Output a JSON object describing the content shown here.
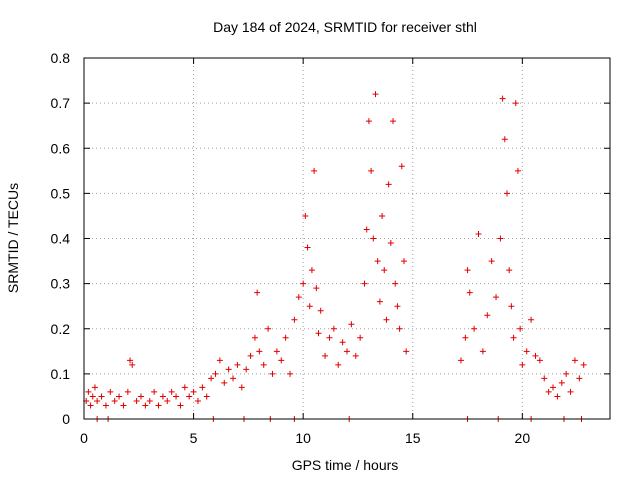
{
  "chart_data": {
    "type": "scatter",
    "title": "Day 184 of 2024, SRMTID for receiver sthl",
    "xlabel": "GPS time / hours",
    "ylabel": "SRMTID / TECUs",
    "xlim": [
      0,
      24
    ],
    "ylim": [
      0,
      0.8
    ],
    "grid": true,
    "marker": "+",
    "marker_color": "#e00000",
    "x_ticks": [
      0,
      5,
      10,
      15,
      20
    ],
    "x_tick_labels": [
      "0",
      "5",
      "10",
      "15",
      "20"
    ],
    "y_ticks": [
      0,
      0.1,
      0.2,
      0.3,
      0.4,
      0.5,
      0.6,
      0.7,
      0.8
    ],
    "y_tick_labels": [
      "0",
      "0.1",
      "0.2",
      "0.3",
      "0.4",
      "0.5",
      "0.6",
      "0.7",
      "0.8"
    ],
    "data_gaps_hours": [
      [
        14.8,
        17.2
      ]
    ],
    "series": [
      {
        "name": "SRMTID",
        "points": [
          [
            0.1,
            0.04
          ],
          [
            0.2,
            0.06
          ],
          [
            0.3,
            0.03
          ],
          [
            0.4,
            0.05
          ],
          [
            0.5,
            0.07
          ],
          [
            0.6,
            0.04
          ],
          [
            0.8,
            0.05
          ],
          [
            1.0,
            0.03
          ],
          [
            1.2,
            0.06
          ],
          [
            1.4,
            0.04
          ],
          [
            1.6,
            0.05
          ],
          [
            1.8,
            0.03
          ],
          [
            2.0,
            0.06
          ],
          [
            2.1,
            0.13
          ],
          [
            2.2,
            0.12
          ],
          [
            2.4,
            0.04
          ],
          [
            2.6,
            0.05
          ],
          [
            2.8,
            0.03
          ],
          [
            3.0,
            0.04
          ],
          [
            3.2,
            0.06
          ],
          [
            3.4,
            0.03
          ],
          [
            3.6,
            0.05
          ],
          [
            3.8,
            0.04
          ],
          [
            4.0,
            0.06
          ],
          [
            4.2,
            0.05
          ],
          [
            4.4,
            0.03
          ],
          [
            4.6,
            0.07
          ],
          [
            4.8,
            0.05
          ],
          [
            5.0,
            0.06
          ],
          [
            5.2,
            0.04
          ],
          [
            5.4,
            0.07
          ],
          [
            5.6,
            0.05
          ],
          [
            5.8,
            0.09
          ],
          [
            6.0,
            0.1
          ],
          [
            6.2,
            0.13
          ],
          [
            6.4,
            0.08
          ],
          [
            6.6,
            0.11
          ],
          [
            6.8,
            0.09
          ],
          [
            7.0,
            0.12
          ],
          [
            7.2,
            0.07
          ],
          [
            7.4,
            0.11
          ],
          [
            7.6,
            0.14
          ],
          [
            7.8,
            0.18
          ],
          [
            7.9,
            0.28
          ],
          [
            8.0,
            0.15
          ],
          [
            8.2,
            0.12
          ],
          [
            8.4,
            0.2
          ],
          [
            8.6,
            0.1
          ],
          [
            8.8,
            0.15
          ],
          [
            9.0,
            0.13
          ],
          [
            9.2,
            0.18
          ],
          [
            9.4,
            0.1
          ],
          [
            9.6,
            0.22
          ],
          [
            9.8,
            0.27
          ],
          [
            10.0,
            0.3
          ],
          [
            10.1,
            0.45
          ],
          [
            10.2,
            0.38
          ],
          [
            10.3,
            0.25
          ],
          [
            10.4,
            0.33
          ],
          [
            10.5,
            0.55
          ],
          [
            10.6,
            0.29
          ],
          [
            10.7,
            0.19
          ],
          [
            10.8,
            0.24
          ],
          [
            11.0,
            0.14
          ],
          [
            11.2,
            0.18
          ],
          [
            11.4,
            0.2
          ],
          [
            11.6,
            0.12
          ],
          [
            11.8,
            0.17
          ],
          [
            12.0,
            0.15
          ],
          [
            12.2,
            0.21
          ],
          [
            12.4,
            0.14
          ],
          [
            12.6,
            0.18
          ],
          [
            12.8,
            0.3
          ],
          [
            12.9,
            0.42
          ],
          [
            13.0,
            0.66
          ],
          [
            13.1,
            0.55
          ],
          [
            13.2,
            0.4
          ],
          [
            13.3,
            0.72
          ],
          [
            13.4,
            0.35
          ],
          [
            13.5,
            0.26
          ],
          [
            13.6,
            0.45
          ],
          [
            13.7,
            0.33
          ],
          [
            13.8,
            0.22
          ],
          [
            13.9,
            0.52
          ],
          [
            14.0,
            0.39
          ],
          [
            14.1,
            0.66
          ],
          [
            14.2,
            0.3
          ],
          [
            14.3,
            0.25
          ],
          [
            14.4,
            0.2
          ],
          [
            14.5,
            0.56
          ],
          [
            14.6,
            0.35
          ],
          [
            14.7,
            0.15
          ],
          [
            17.2,
            0.13
          ],
          [
            17.4,
            0.18
          ],
          [
            17.5,
            0.33
          ],
          [
            17.6,
            0.28
          ],
          [
            17.8,
            0.2
          ],
          [
            18.0,
            0.41
          ],
          [
            18.2,
            0.15
          ],
          [
            18.4,
            0.23
          ],
          [
            18.6,
            0.35
          ],
          [
            18.8,
            0.27
          ],
          [
            19.0,
            0.4
          ],
          [
            19.1,
            0.71
          ],
          [
            19.2,
            0.62
          ],
          [
            19.3,
            0.5
          ],
          [
            19.4,
            0.33
          ],
          [
            19.5,
            0.25
          ],
          [
            19.6,
            0.18
          ],
          [
            19.7,
            0.7
          ],
          [
            19.8,
            0.55
          ],
          [
            19.9,
            0.2
          ],
          [
            20.0,
            0.12
          ],
          [
            20.2,
            0.15
          ],
          [
            20.4,
            0.22
          ],
          [
            20.6,
            0.14
          ],
          [
            20.8,
            0.13
          ],
          [
            21.0,
            0.09
          ],
          [
            21.2,
            0.06
          ],
          [
            21.4,
            0.07
          ],
          [
            21.6,
            0.05
          ],
          [
            21.8,
            0.08
          ],
          [
            22.0,
            0.1
          ],
          [
            22.2,
            0.06
          ],
          [
            22.4,
            0.13
          ],
          [
            22.6,
            0.09
          ],
          [
            22.8,
            0.12
          ],
          [
            0.6,
            0.0
          ],
          [
            1.1,
            0.0
          ],
          [
            5.9,
            0.0
          ],
          [
            7.3,
            0.0
          ],
          [
            8.5,
            0.0
          ],
          [
            9.6,
            0.0
          ],
          [
            12.1,
            0.0
          ],
          [
            17.5,
            0.0
          ],
          [
            18.9,
            0.0
          ],
          [
            20.4,
            0.0
          ],
          [
            21.9,
            0.0
          ],
          [
            22.7,
            0.0
          ]
        ]
      }
    ]
  }
}
